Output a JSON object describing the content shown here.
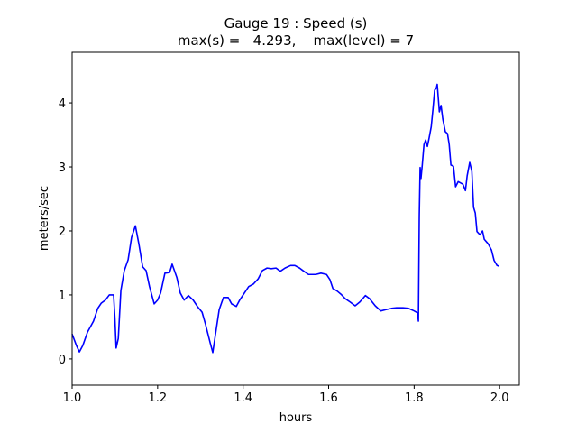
{
  "chart_data": {
    "type": "line",
    "title": "Gauge 19 : Speed (s)",
    "subtitle": "max(s) =   4.293,    max(level) = 7",
    "xlabel": "hours",
    "ylabel": "meters/sec",
    "xlim": [
      1.0,
      2.046
    ],
    "ylim": [
      -0.41,
      4.79
    ],
    "xticks": [
      {
        "value": 1.0,
        "label": "1.0"
      },
      {
        "value": 1.2,
        "label": "1.2"
      },
      {
        "value": 1.4,
        "label": "1.4"
      },
      {
        "value": 1.6,
        "label": "1.6"
      },
      {
        "value": 1.8,
        "label": "1.8"
      },
      {
        "value": 2.0,
        "label": "2.0"
      }
    ],
    "yticks": [
      0,
      1,
      2,
      3,
      4
    ],
    "grid": false,
    "series": [
      {
        "name": "s",
        "color": "#0000ff",
        "x": [
          1.0,
          1.01,
          1.017,
          1.025,
          1.036,
          1.05,
          1.06,
          1.068,
          1.078,
          1.087,
          1.097,
          1.1,
          1.103,
          1.108,
          1.114,
          1.122,
          1.131,
          1.139,
          1.148,
          1.156,
          1.165,
          1.173,
          1.181,
          1.192,
          1.2,
          1.207,
          1.217,
          1.228,
          1.234,
          1.245,
          1.253,
          1.262,
          1.272,
          1.283,
          1.293,
          1.304,
          1.312,
          1.323,
          1.329,
          1.335,
          1.344,
          1.354,
          1.365,
          1.373,
          1.384,
          1.392,
          1.403,
          1.413,
          1.424,
          1.435,
          1.445,
          1.456,
          1.466,
          1.477,
          1.487,
          1.498,
          1.511,
          1.521,
          1.532,
          1.542,
          1.553,
          1.57,
          1.582,
          1.595,
          1.603,
          1.61,
          1.62,
          1.629,
          1.639,
          1.65,
          1.662,
          1.673,
          1.686,
          1.696,
          1.709,
          1.722,
          1.734,
          1.747,
          1.759,
          1.774,
          1.787,
          1.8,
          1.808,
          1.81,
          1.812,
          1.814,
          1.816,
          1.819,
          1.823,
          1.827,
          1.831,
          1.835,
          1.84,
          1.844,
          1.848,
          1.852,
          1.854,
          1.859,
          1.863,
          1.867,
          1.873,
          1.878,
          1.882,
          1.886,
          1.892,
          1.897,
          1.903,
          1.914,
          1.92,
          1.924,
          1.93,
          1.935,
          1.939,
          1.943,
          1.947,
          1.954,
          1.96,
          1.964,
          1.973,
          1.981,
          1.987,
          1.994,
          1.998
        ],
        "values": [
          0.39,
          0.21,
          0.11,
          0.21,
          0.42,
          0.59,
          0.79,
          0.87,
          0.92,
          1.0,
          1.0,
          0.65,
          0.17,
          0.32,
          1.07,
          1.38,
          1.55,
          1.9,
          2.08,
          1.8,
          1.44,
          1.38,
          1.13,
          0.86,
          0.92,
          1.03,
          1.34,
          1.35,
          1.48,
          1.27,
          1.03,
          0.92,
          0.99,
          0.92,
          0.82,
          0.73,
          0.54,
          0.25,
          0.1,
          0.37,
          0.77,
          0.96,
          0.96,
          0.86,
          0.82,
          0.92,
          1.03,
          1.13,
          1.17,
          1.25,
          1.38,
          1.42,
          1.41,
          1.42,
          1.37,
          1.42,
          1.46,
          1.46,
          1.42,
          1.37,
          1.32,
          1.32,
          1.34,
          1.32,
          1.24,
          1.1,
          1.06,
          1.01,
          0.94,
          0.89,
          0.83,
          0.89,
          0.99,
          0.94,
          0.83,
          0.75,
          0.77,
          0.79,
          0.8,
          0.8,
          0.79,
          0.75,
          0.72,
          0.59,
          2.23,
          2.99,
          2.82,
          3.03,
          3.35,
          3.42,
          3.32,
          3.45,
          3.63,
          3.9,
          4.2,
          4.23,
          4.29,
          3.86,
          3.96,
          3.75,
          3.55,
          3.52,
          3.35,
          3.03,
          3.01,
          2.69,
          2.77,
          2.73,
          2.63,
          2.86,
          3.07,
          2.93,
          2.37,
          2.28,
          1.99,
          1.94,
          2.0,
          1.87,
          1.8,
          1.7,
          1.54,
          1.46,
          1.45
        ]
      }
    ]
  }
}
